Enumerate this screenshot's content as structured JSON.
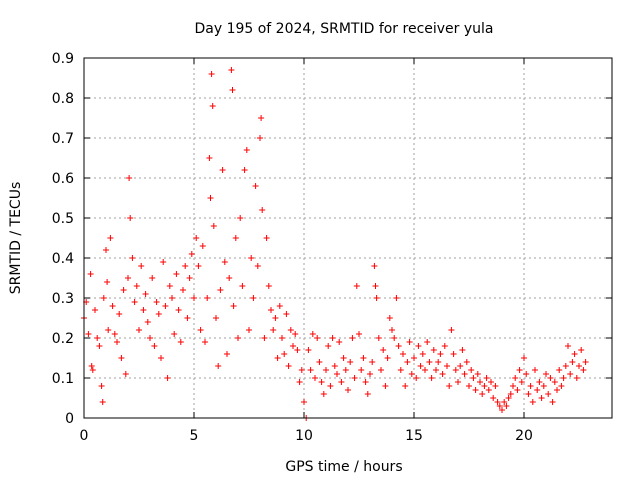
{
  "chart_data": {
    "type": "scatter",
    "title": "Day 195 of 2024, SRMTID for receiver yula",
    "xlabel": "GPS time / hours",
    "ylabel": "SRMTID / TECUs",
    "xlim": [
      0,
      24
    ],
    "ylim": [
      0,
      0.9
    ],
    "xticks": [
      0,
      5,
      10,
      15,
      20
    ],
    "xtick_labels": [
      "0",
      "5",
      "10",
      "15",
      "20"
    ],
    "yticks": [
      0,
      0.1,
      0.2,
      0.3,
      0.4,
      0.5,
      0.6,
      0.7,
      0.8,
      0.9
    ],
    "ytick_labels": [
      "0",
      "0.1",
      "0.2",
      "0.3",
      "0.4",
      "0.5",
      "0.6",
      "0.7",
      "0.8",
      "0.9"
    ],
    "grid": true,
    "marker": "+",
    "color": "#ff0000",
    "series": [
      {
        "name": "SRMTID",
        "points": [
          [
            0.0,
            0.25
          ],
          [
            0.1,
            0.29
          ],
          [
            0.2,
            0.21
          ],
          [
            0.3,
            0.36
          ],
          [
            0.35,
            0.13
          ],
          [
            0.4,
            0.12
          ],
          [
            0.5,
            0.27
          ],
          [
            0.6,
            0.2
          ],
          [
            0.7,
            0.18
          ],
          [
            0.8,
            0.08
          ],
          [
            0.85,
            0.04
          ],
          [
            0.9,
            0.3
          ],
          [
            1.0,
            0.42
          ],
          [
            1.05,
            0.34
          ],
          [
            1.1,
            0.22
          ],
          [
            1.2,
            0.45
          ],
          [
            1.3,
            0.28
          ],
          [
            1.4,
            0.21
          ],
          [
            1.5,
            0.19
          ],
          [
            1.6,
            0.26
          ],
          [
            1.7,
            0.15
          ],
          [
            1.8,
            0.32
          ],
          [
            1.9,
            0.11
          ],
          [
            2.0,
            0.35
          ],
          [
            2.05,
            0.6
          ],
          [
            2.1,
            0.5
          ],
          [
            2.2,
            0.4
          ],
          [
            2.3,
            0.29
          ],
          [
            2.4,
            0.33
          ],
          [
            2.5,
            0.22
          ],
          [
            2.6,
            0.38
          ],
          [
            2.7,
            0.27
          ],
          [
            2.8,
            0.31
          ],
          [
            2.9,
            0.24
          ],
          [
            3.0,
            0.2
          ],
          [
            3.1,
            0.35
          ],
          [
            3.2,
            0.18
          ],
          [
            3.3,
            0.29
          ],
          [
            3.4,
            0.26
          ],
          [
            3.5,
            0.15
          ],
          [
            3.6,
            0.39
          ],
          [
            3.7,
            0.28
          ],
          [
            3.8,
            0.1
          ],
          [
            3.9,
            0.33
          ],
          [
            4.0,
            0.3
          ],
          [
            4.1,
            0.21
          ],
          [
            4.2,
            0.36
          ],
          [
            4.3,
            0.27
          ],
          [
            4.4,
            0.19
          ],
          [
            4.5,
            0.32
          ],
          [
            4.6,
            0.38
          ],
          [
            4.7,
            0.25
          ],
          [
            4.8,
            0.35
          ],
          [
            4.9,
            0.41
          ],
          [
            5.0,
            0.3
          ],
          [
            5.1,
            0.45
          ],
          [
            5.2,
            0.38
          ],
          [
            5.3,
            0.22
          ],
          [
            5.4,
            0.43
          ],
          [
            5.5,
            0.19
          ],
          [
            5.6,
            0.3
          ],
          [
            5.7,
            0.65
          ],
          [
            5.75,
            0.55
          ],
          [
            5.8,
            0.86
          ],
          [
            5.85,
            0.78
          ],
          [
            5.9,
            0.48
          ],
          [
            6.0,
            0.25
          ],
          [
            6.1,
            0.13
          ],
          [
            6.2,
            0.32
          ],
          [
            6.3,
            0.62
          ],
          [
            6.4,
            0.39
          ],
          [
            6.5,
            0.16
          ],
          [
            6.6,
            0.35
          ],
          [
            6.7,
            0.87
          ],
          [
            6.75,
            0.82
          ],
          [
            6.8,
            0.28
          ],
          [
            6.9,
            0.45
          ],
          [
            7.0,
            0.2
          ],
          [
            7.1,
            0.5
          ],
          [
            7.2,
            0.33
          ],
          [
            7.3,
            0.62
          ],
          [
            7.4,
            0.67
          ],
          [
            7.5,
            0.22
          ],
          [
            7.6,
            0.4
          ],
          [
            7.7,
            0.3
          ],
          [
            7.8,
            0.58
          ],
          [
            7.9,
            0.38
          ],
          [
            8.0,
            0.7
          ],
          [
            8.05,
            0.75
          ],
          [
            8.1,
            0.52
          ],
          [
            8.2,
            0.2
          ],
          [
            8.3,
            0.45
          ],
          [
            8.4,
            0.33
          ],
          [
            8.5,
            0.27
          ],
          [
            8.6,
            0.22
          ],
          [
            8.7,
            0.25
          ],
          [
            8.8,
            0.15
          ],
          [
            8.9,
            0.28
          ],
          [
            9.0,
            0.2
          ],
          [
            9.1,
            0.16
          ],
          [
            9.2,
            0.26
          ],
          [
            9.3,
            0.13
          ],
          [
            9.4,
            0.22
          ],
          [
            9.5,
            0.18
          ],
          [
            9.6,
            0.21
          ],
          [
            9.7,
            0.17
          ],
          [
            9.8,
            0.09
          ],
          [
            9.9,
            0.12
          ],
          [
            10.0,
            0.04
          ],
          [
            10.1,
            0.0
          ],
          [
            10.2,
            0.17
          ],
          [
            10.3,
            0.12
          ],
          [
            10.4,
            0.21
          ],
          [
            10.5,
            0.1
          ],
          [
            10.6,
            0.2
          ],
          [
            10.7,
            0.14
          ],
          [
            10.8,
            0.09
          ],
          [
            10.9,
            0.06
          ],
          [
            11.0,
            0.12
          ],
          [
            11.1,
            0.18
          ],
          [
            11.2,
            0.08
          ],
          [
            11.3,
            0.2
          ],
          [
            11.4,
            0.13
          ],
          [
            11.5,
            0.11
          ],
          [
            11.6,
            0.19
          ],
          [
            11.7,
            0.09
          ],
          [
            11.8,
            0.15
          ],
          [
            11.9,
            0.12
          ],
          [
            12.0,
            0.07
          ],
          [
            12.1,
            0.14
          ],
          [
            12.2,
            0.2
          ],
          [
            12.3,
            0.1
          ],
          [
            12.4,
            0.33
          ],
          [
            12.5,
            0.21
          ],
          [
            12.6,
            0.12
          ],
          [
            12.7,
            0.15
          ],
          [
            12.8,
            0.09
          ],
          [
            12.9,
            0.06
          ],
          [
            13.0,
            0.11
          ],
          [
            13.1,
            0.14
          ],
          [
            13.2,
            0.38
          ],
          [
            13.25,
            0.33
          ],
          [
            13.3,
            0.3
          ],
          [
            13.4,
            0.2
          ],
          [
            13.5,
            0.12
          ],
          [
            13.6,
            0.17
          ],
          [
            13.7,
            0.08
          ],
          [
            13.8,
            0.15
          ],
          [
            13.9,
            0.25
          ],
          [
            14.0,
            0.22
          ],
          [
            14.1,
            0.2
          ],
          [
            14.2,
            0.3
          ],
          [
            14.3,
            0.18
          ],
          [
            14.4,
            0.12
          ],
          [
            14.5,
            0.16
          ],
          [
            14.6,
            0.08
          ],
          [
            14.7,
            0.14
          ],
          [
            14.8,
            0.19
          ],
          [
            14.9,
            0.11
          ],
          [
            15.0,
            0.15
          ],
          [
            15.1,
            0.1
          ],
          [
            15.2,
            0.18
          ],
          [
            15.3,
            0.13
          ],
          [
            15.4,
            0.16
          ],
          [
            15.5,
            0.12
          ],
          [
            15.6,
            0.19
          ],
          [
            15.7,
            0.14
          ],
          [
            15.8,
            0.1
          ],
          [
            15.9,
            0.17
          ],
          [
            16.0,
            0.12
          ],
          [
            16.1,
            0.14
          ],
          [
            16.2,
            0.16
          ],
          [
            16.3,
            0.11
          ],
          [
            16.4,
            0.18
          ],
          [
            16.5,
            0.13
          ],
          [
            16.6,
            0.08
          ],
          [
            16.7,
            0.22
          ],
          [
            16.8,
            0.16
          ],
          [
            16.9,
            0.12
          ],
          [
            17.0,
            0.09
          ],
          [
            17.1,
            0.13
          ],
          [
            17.2,
            0.17
          ],
          [
            17.3,
            0.11
          ],
          [
            17.4,
            0.14
          ],
          [
            17.5,
            0.08
          ],
          [
            17.6,
            0.12
          ],
          [
            17.7,
            0.1
          ],
          [
            17.8,
            0.07
          ],
          [
            17.9,
            0.11
          ],
          [
            18.0,
            0.09
          ],
          [
            18.1,
            0.06
          ],
          [
            18.2,
            0.08
          ],
          [
            18.3,
            0.1
          ],
          [
            18.4,
            0.07
          ],
          [
            18.5,
            0.09
          ],
          [
            18.6,
            0.05
          ],
          [
            18.7,
            0.08
          ],
          [
            18.8,
            0.04
          ],
          [
            18.9,
            0.03
          ],
          [
            19.0,
            0.02
          ],
          [
            19.1,
            0.04
          ],
          [
            19.2,
            0.03
          ],
          [
            19.3,
            0.05
          ],
          [
            19.4,
            0.06
          ],
          [
            19.5,
            0.08
          ],
          [
            19.6,
            0.1
          ],
          [
            19.7,
            0.07
          ],
          [
            19.8,
            0.12
          ],
          [
            19.9,
            0.09
          ],
          [
            20.0,
            0.15
          ],
          [
            20.1,
            0.11
          ],
          [
            20.2,
            0.06
          ],
          [
            20.3,
            0.08
          ],
          [
            20.4,
            0.04
          ],
          [
            20.5,
            0.12
          ],
          [
            20.6,
            0.07
          ],
          [
            20.7,
            0.09
          ],
          [
            20.8,
            0.05
          ],
          [
            20.9,
            0.08
          ],
          [
            21.0,
            0.11
          ],
          [
            21.1,
            0.06
          ],
          [
            21.2,
            0.1
          ],
          [
            21.3,
            0.04
          ],
          [
            21.4,
            0.09
          ],
          [
            21.5,
            0.07
          ],
          [
            21.6,
            0.12
          ],
          [
            21.7,
            0.08
          ],
          [
            21.8,
            0.1
          ],
          [
            21.9,
            0.13
          ],
          [
            22.0,
            0.18
          ],
          [
            22.1,
            0.11
          ],
          [
            22.2,
            0.14
          ],
          [
            22.3,
            0.16
          ],
          [
            22.4,
            0.1
          ],
          [
            22.5,
            0.13
          ],
          [
            22.6,
            0.17
          ],
          [
            22.7,
            0.12
          ],
          [
            22.8,
            0.14
          ]
        ]
      }
    ]
  }
}
